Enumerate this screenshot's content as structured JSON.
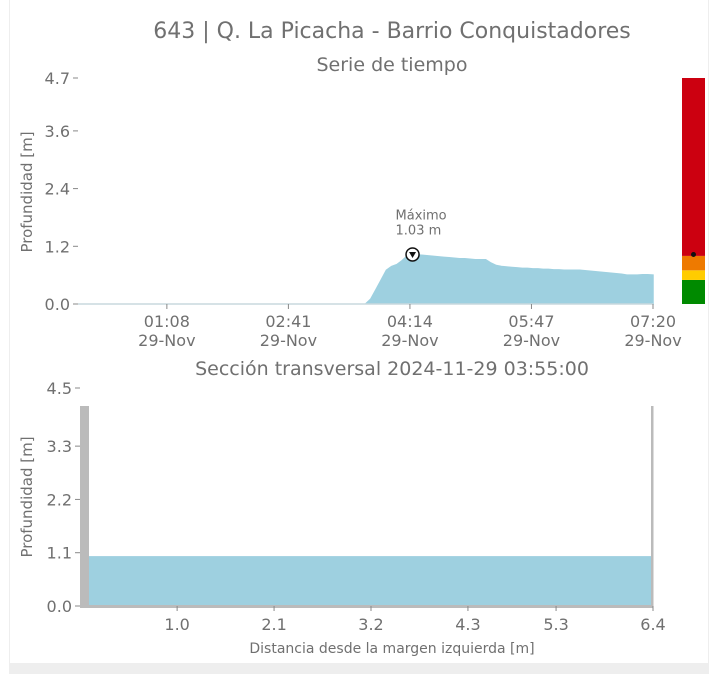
{
  "header": {
    "title": "643 | Q. La Picacha - Barrio Conquistadores"
  },
  "colors": {
    "fill": "#9ed0e0",
    "axis": "#888888",
    "text": "#707070",
    "wall": "#bbbbbb",
    "alert_red": "#cc0010",
    "alert_orange": "#ee7a00",
    "alert_yellow": "#ffcc00",
    "alert_green": "#008a00"
  },
  "chart_data": [
    {
      "type": "area",
      "title": "Serie de tiempo",
      "ylabel": "Profundidad [m]",
      "xlabel": "",
      "ylim": [
        0,
        4.7
      ],
      "xlim": [
        0,
        345
      ],
      "y_ticks": [
        "0.0",
        "1.2",
        "2.4",
        "3.6",
        "4.7"
      ],
      "x_ticks": [
        {
          "at": 68,
          "time": "01:08",
          "date": "29-Nov"
        },
        {
          "at": 161,
          "time": "02:41",
          "date": "29-Nov"
        },
        {
          "at": 254,
          "time": "04:14",
          "date": "29-Nov"
        },
        {
          "at": 347,
          "time": "05:47",
          "date": "29-Nov"
        },
        {
          "at": 440,
          "time": "07:20",
          "date": "29-Nov"
        }
      ],
      "x": [
        0,
        100,
        200,
        210,
        240,
        245,
        250,
        255,
        260,
        265,
        272,
        280,
        290,
        300,
        310,
        320,
        330,
        337,
        345
      ],
      "y": [
        0,
        0,
        0,
        0,
        0,
        0,
        0,
        0,
        0,
        0,
        0,
        0,
        0,
        0,
        0,
        0,
        0,
        0,
        0
      ],
      "series_x": [
        0,
        150,
        220,
        224,
        228,
        232,
        236,
        240,
        244,
        248,
        252,
        256,
        260,
        264,
        268,
        272,
        276,
        280,
        284,
        288,
        292,
        296,
        300,
        304,
        308,
        312,
        316,
        320,
        324,
        328,
        332,
        336,
        340,
        344,
        348,
        352,
        356,
        360,
        364,
        368,
        372,
        376,
        380,
        384,
        388,
        392,
        396,
        400,
        404,
        408,
        412,
        416,
        420,
        424,
        428,
        432,
        436,
        440
      ],
      "series_y": [
        0,
        0,
        0,
        0.1,
        0.3,
        0.5,
        0.7,
        0.78,
        0.82,
        0.9,
        1.0,
        1.03,
        1.02,
        1.01,
        1.0,
        0.99,
        0.98,
        0.97,
        0.96,
        0.95,
        0.94,
        0.94,
        0.93,
        0.92,
        0.92,
        0.92,
        0.85,
        0.8,
        0.78,
        0.77,
        0.76,
        0.75,
        0.74,
        0.74,
        0.73,
        0.73,
        0.72,
        0.72,
        0.71,
        0.71,
        0.7,
        0.7,
        0.7,
        0.7,
        0.69,
        0.68,
        0.67,
        0.66,
        0.65,
        0.64,
        0.63,
        0.62,
        0.6,
        0.6,
        0.6,
        0.61,
        0.61,
        0.6
      ],
      "annotation": {
        "label": "Máximo",
        "value": "1.03 m",
        "x": 256,
        "y": 1.03
      },
      "alert_bar": {
        "levels": [
          {
            "from": 0,
            "to": 0.5,
            "color": "#008a00"
          },
          {
            "from": 0.5,
            "to": 0.7,
            "color": "#ffcc00"
          },
          {
            "from": 0.7,
            "to": 1.0,
            "color": "#ee7a00"
          },
          {
            "from": 1.0,
            "to": 4.7,
            "color": "#cc0010"
          }
        ],
        "marker": 1.03
      }
    },
    {
      "type": "area",
      "title": "Sección transversal 2024-11-29 03:55:00",
      "xlabel": "Distancia desde la margen izquierda [m]",
      "ylabel": "Profundidad [m]",
      "ylim": [
        0,
        4.5
      ],
      "xlim": [
        0,
        6.4
      ],
      "y_ticks": [
        "0.0",
        "1.1",
        "2.2",
        "3.3",
        "4.5"
      ],
      "x_ticks": [
        "1.0",
        "2.1",
        "3.2",
        "4.3",
        "5.3",
        "6.4"
      ],
      "x_tick_values": [
        1.0,
        2.1,
        3.2,
        4.3,
        5.3,
        6.4
      ],
      "water_level": 1.03
    }
  ]
}
